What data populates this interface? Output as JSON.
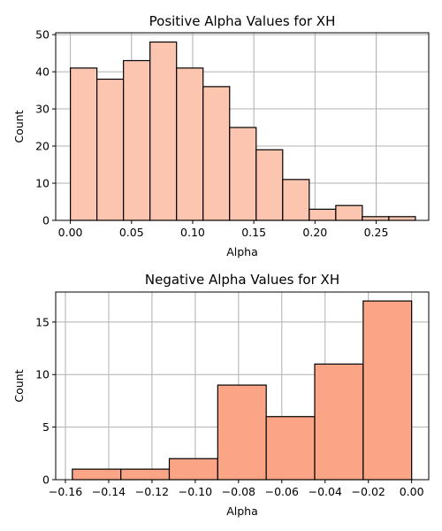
{
  "chart_data": [
    {
      "type": "bar",
      "title": "Positive Alpha Values for XH",
      "xlabel": "Alpha",
      "ylabel": "Count",
      "xlim": [
        -0.012,
        0.293
      ],
      "ylim": [
        0,
        50.5
      ],
      "xticks": [
        0.0,
        0.05,
        0.1,
        0.15,
        0.2,
        0.25
      ],
      "xtick_labels": [
        "0.00",
        "0.05",
        "0.10",
        "0.15",
        "0.20",
        "0.25"
      ],
      "yticks": [
        0,
        10,
        20,
        30,
        40,
        50
      ],
      "ytick_labels": [
        "0",
        "10",
        "20",
        "30",
        "40",
        "50"
      ],
      "grid": true,
      "bar_color": "#fcc5b0",
      "bin_edges": [
        0.0,
        0.0217,
        0.0434,
        0.0651,
        0.0868,
        0.1085,
        0.1302,
        0.1519,
        0.1736,
        0.1953,
        0.217,
        0.2387,
        0.2604,
        0.2821
      ],
      "values": [
        41,
        38,
        43,
        48,
        41,
        36,
        25,
        19,
        11,
        3,
        4,
        1,
        1
      ]
    },
    {
      "type": "bar",
      "title": "Negative Alpha Values for XH",
      "xlabel": "Alpha",
      "ylabel": "Count",
      "xlim": [
        -0.1645,
        0.0079
      ],
      "ylim": [
        0,
        17.85
      ],
      "xticks": [
        -0.16,
        -0.14,
        -0.12,
        -0.1,
        -0.08,
        -0.06,
        -0.04,
        -0.02,
        0.0
      ],
      "xtick_labels": [
        "−0.16",
        "−0.14",
        "−0.12",
        "−0.10",
        "−0.08",
        "−0.06",
        "−0.04",
        "−0.02",
        "0.00"
      ],
      "yticks": [
        0,
        5,
        10,
        15
      ],
      "ytick_labels": [
        "0",
        "5",
        "10",
        "15"
      ],
      "grid": true,
      "bar_color": "#fca486",
      "bin_edges": [
        -0.1568,
        -0.1344,
        -0.112,
        -0.0896,
        -0.0672,
        -0.0448,
        -0.0224,
        0.0
      ],
      "values": [
        1,
        1,
        2,
        9,
        6,
        11,
        17
      ]
    }
  ]
}
